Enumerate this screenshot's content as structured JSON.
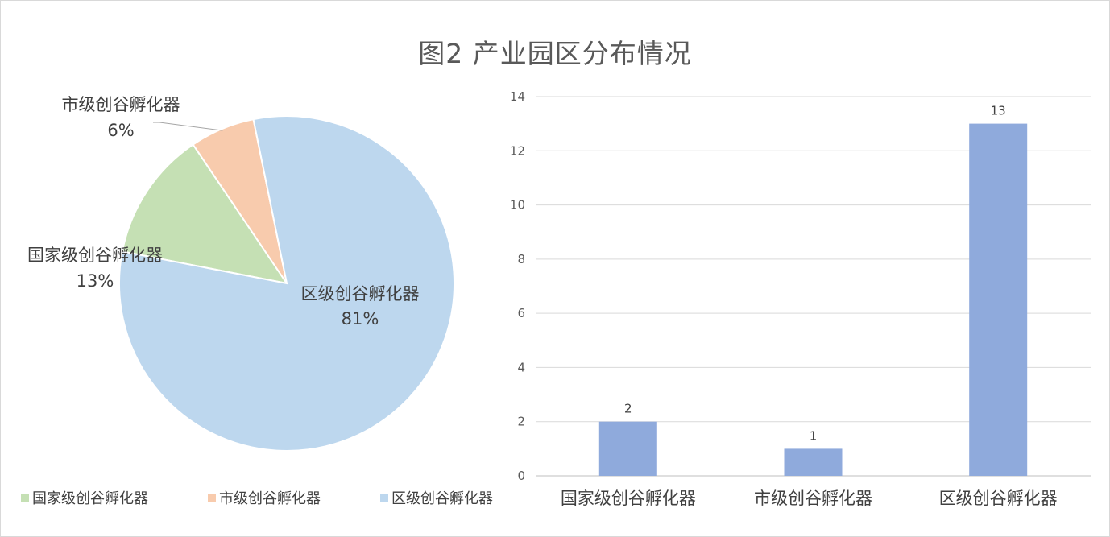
{
  "title": "图2 产业园区分布情况",
  "colors": {
    "national": "#c5e0b4",
    "municipal": "#f8cbad",
    "district": "#bdd7ee",
    "bar": "#8faadc",
    "grid": "#d9d9d9",
    "axis": "#bfbfbf",
    "leader": "#a6a6a6"
  },
  "chart_data": [
    {
      "type": "pie",
      "title": "",
      "slices": [
        {
          "name": "国家级创谷孵化器",
          "value": 2,
          "label": "13%"
        },
        {
          "name": "市级创谷孵化器",
          "value": 1,
          "label": "6%"
        },
        {
          "name": "区级创谷孵化器",
          "value": 13,
          "label": "81%"
        }
      ],
      "legend_position": "bottom"
    },
    {
      "type": "bar",
      "title": "",
      "categories": [
        "国家级创谷孵化器",
        "市级创谷孵化器",
        "区级创谷孵化器"
      ],
      "values": [
        2,
        1,
        13
      ],
      "data_labels": [
        "2",
        "1",
        "13"
      ],
      "ylim": [
        0,
        14
      ],
      "yticks": [
        "0",
        "2",
        "4",
        "6",
        "8",
        "10",
        "12",
        "14"
      ],
      "grid": true
    }
  ]
}
